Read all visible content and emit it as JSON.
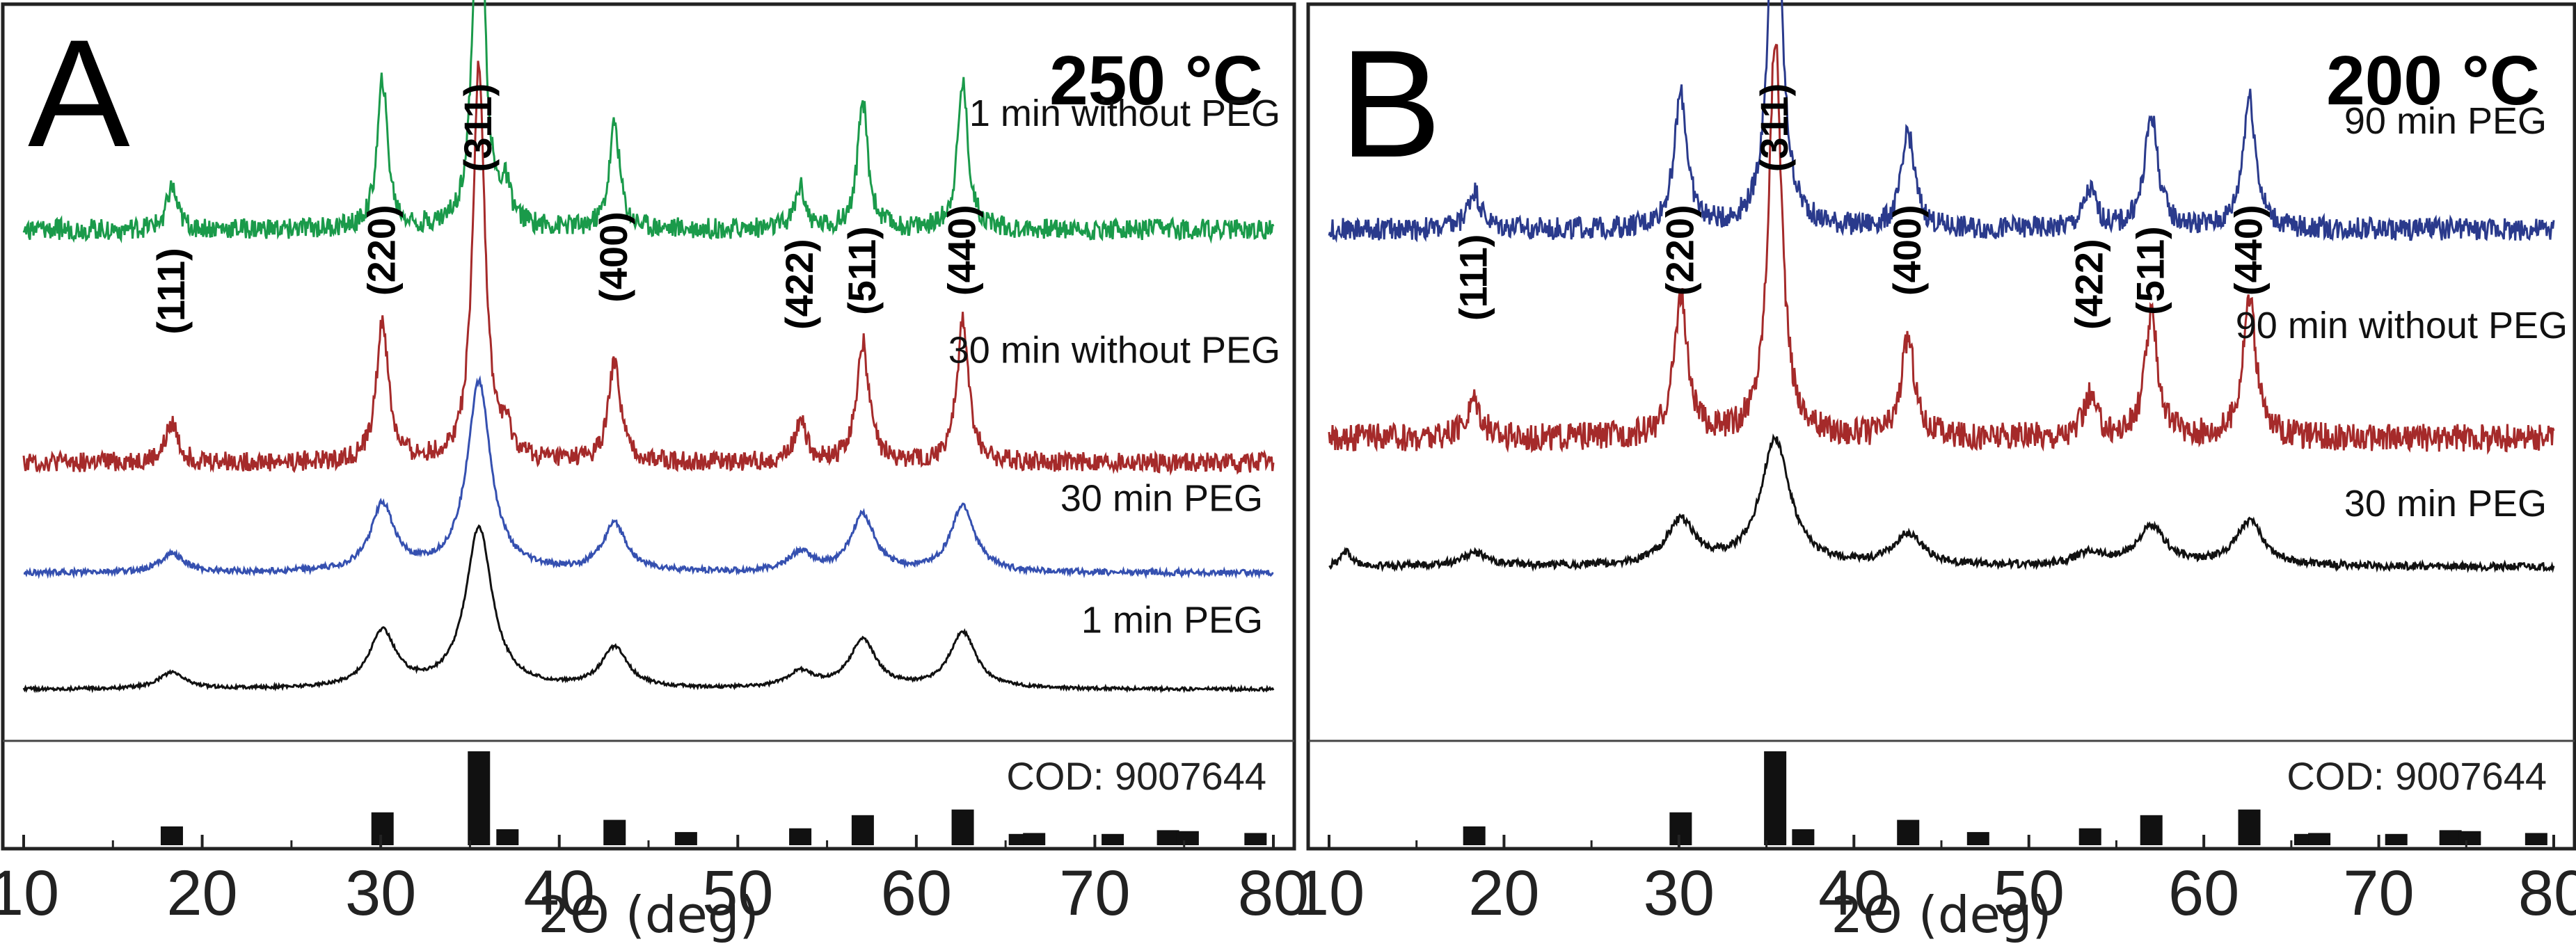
{
  "chart_data": [
    {
      "type": "line",
      "panel": "A",
      "title": "250 °C",
      "xlabel": "2Θ (deg)",
      "ylabel": "",
      "xlim": [
        10,
        80
      ],
      "xticks": [
        10,
        20,
        30,
        40,
        50,
        60,
        70,
        80
      ],
      "peaks": [
        {
          "label": "(111)",
          "x": 18.3
        },
        {
          "label": "(220)",
          "x": 30.1
        },
        {
          "label": "(311)",
          "x": 35.5
        },
        {
          "label": "(400)",
          "x": 43.1
        },
        {
          "label": "(422)",
          "x": 53.5
        },
        {
          "label": "(511)",
          "x": 57.0
        },
        {
          "label": "(440)",
          "x": 62.6
        }
      ],
      "series": [
        {
          "name": "1 min without PEG",
          "color": "#1a9a4a",
          "baseline": 0.3,
          "scale": 1.0,
          "width": 0.35,
          "noise": 0.05,
          "extra": [
            [
              37.0,
              0.08
            ]
          ]
        },
        {
          "name": "30 min without PEG",
          "color": "#a52a2a",
          "baseline": 0.68,
          "scale": 0.95,
          "width": 0.4,
          "noise": 0.05,
          "extra": [
            [
              37.0,
              0.06
            ]
          ]
        },
        {
          "name": "30 min PEG",
          "color": "#3550b0",
          "baseline": 0.86,
          "scale": 0.45,
          "width": 0.8,
          "noise": 0.03,
          "extra": []
        },
        {
          "name": "1 min PEG",
          "color": "#111111",
          "baseline": 1.05,
          "scale": 0.38,
          "width": 0.9,
          "noise": 0.02,
          "extra": []
        }
      ],
      "reference": {
        "label": "COD: 9007644",
        "bars": [
          {
            "x": 18.3,
            "h": 0.2
          },
          {
            "x": 30.1,
            "h": 0.35
          },
          {
            "x": 35.5,
            "h": 1.0
          },
          {
            "x": 37.1,
            "h": 0.17
          },
          {
            "x": 43.1,
            "h": 0.27
          },
          {
            "x": 47.1,
            "h": 0.14
          },
          {
            "x": 53.5,
            "h": 0.18
          },
          {
            "x": 57.0,
            "h": 0.32
          },
          {
            "x": 62.6,
            "h": 0.38
          },
          {
            "x": 65.8,
            "h": 0.12
          },
          {
            "x": 66.6,
            "h": 0.13
          },
          {
            "x": 71.0,
            "h": 0.12
          },
          {
            "x": 74.1,
            "h": 0.16
          },
          {
            "x": 75.2,
            "h": 0.15
          },
          {
            "x": 79.0,
            "h": 0.13
          }
        ]
      }
    },
    {
      "type": "line",
      "panel": "B",
      "title": "200 °C",
      "xlabel": "2Θ (deg)",
      "ylabel": "",
      "xlim": [
        10,
        80
      ],
      "xticks": [
        10,
        20,
        30,
        40,
        50,
        60,
        70,
        80
      ],
      "peaks": [
        {
          "label": "(111)",
          "x": 18.3
        },
        {
          "label": "(220)",
          "x": 30.1
        },
        {
          "label": "(311)",
          "x": 35.5
        },
        {
          "label": "(400)",
          "x": 43.1
        },
        {
          "label": "(422)",
          "x": 53.5
        },
        {
          "label": "(511)",
          "x": 57.0
        },
        {
          "label": "(440)",
          "x": 62.6
        }
      ],
      "series": [
        {
          "name": "90 min PEG",
          "color": "#2a3a8c",
          "baseline": 0.3,
          "scale": 0.9,
          "width": 0.45,
          "noise": 0.06,
          "extra": []
        },
        {
          "name": "90 min without PEG",
          "color": "#a52a2a",
          "baseline": 0.64,
          "scale": 0.95,
          "width": 0.45,
          "noise": 0.07,
          "extra": []
        },
        {
          "name": "30 min PEG",
          "color": "#111111",
          "baseline": 0.85,
          "scale": 0.3,
          "width": 1.0,
          "noise": 0.06,
          "extra": [
            [
              11.0,
              0.12
            ]
          ]
        }
      ],
      "reference": {
        "label": "COD: 9007644",
        "bars": [
          {
            "x": 18.3,
            "h": 0.2
          },
          {
            "x": 30.1,
            "h": 0.35
          },
          {
            "x": 35.5,
            "h": 1.0
          },
          {
            "x": 37.1,
            "h": 0.17
          },
          {
            "x": 43.1,
            "h": 0.27
          },
          {
            "x": 47.1,
            "h": 0.14
          },
          {
            "x": 53.5,
            "h": 0.18
          },
          {
            "x": 57.0,
            "h": 0.32
          },
          {
            "x": 62.6,
            "h": 0.38
          },
          {
            "x": 65.8,
            "h": 0.12
          },
          {
            "x": 66.6,
            "h": 0.13
          },
          {
            "x": 71.0,
            "h": 0.12
          },
          {
            "x": 74.1,
            "h": 0.16
          },
          {
            "x": 75.2,
            "h": 0.15
          },
          {
            "x": 79.0,
            "h": 0.13
          }
        ]
      }
    }
  ]
}
